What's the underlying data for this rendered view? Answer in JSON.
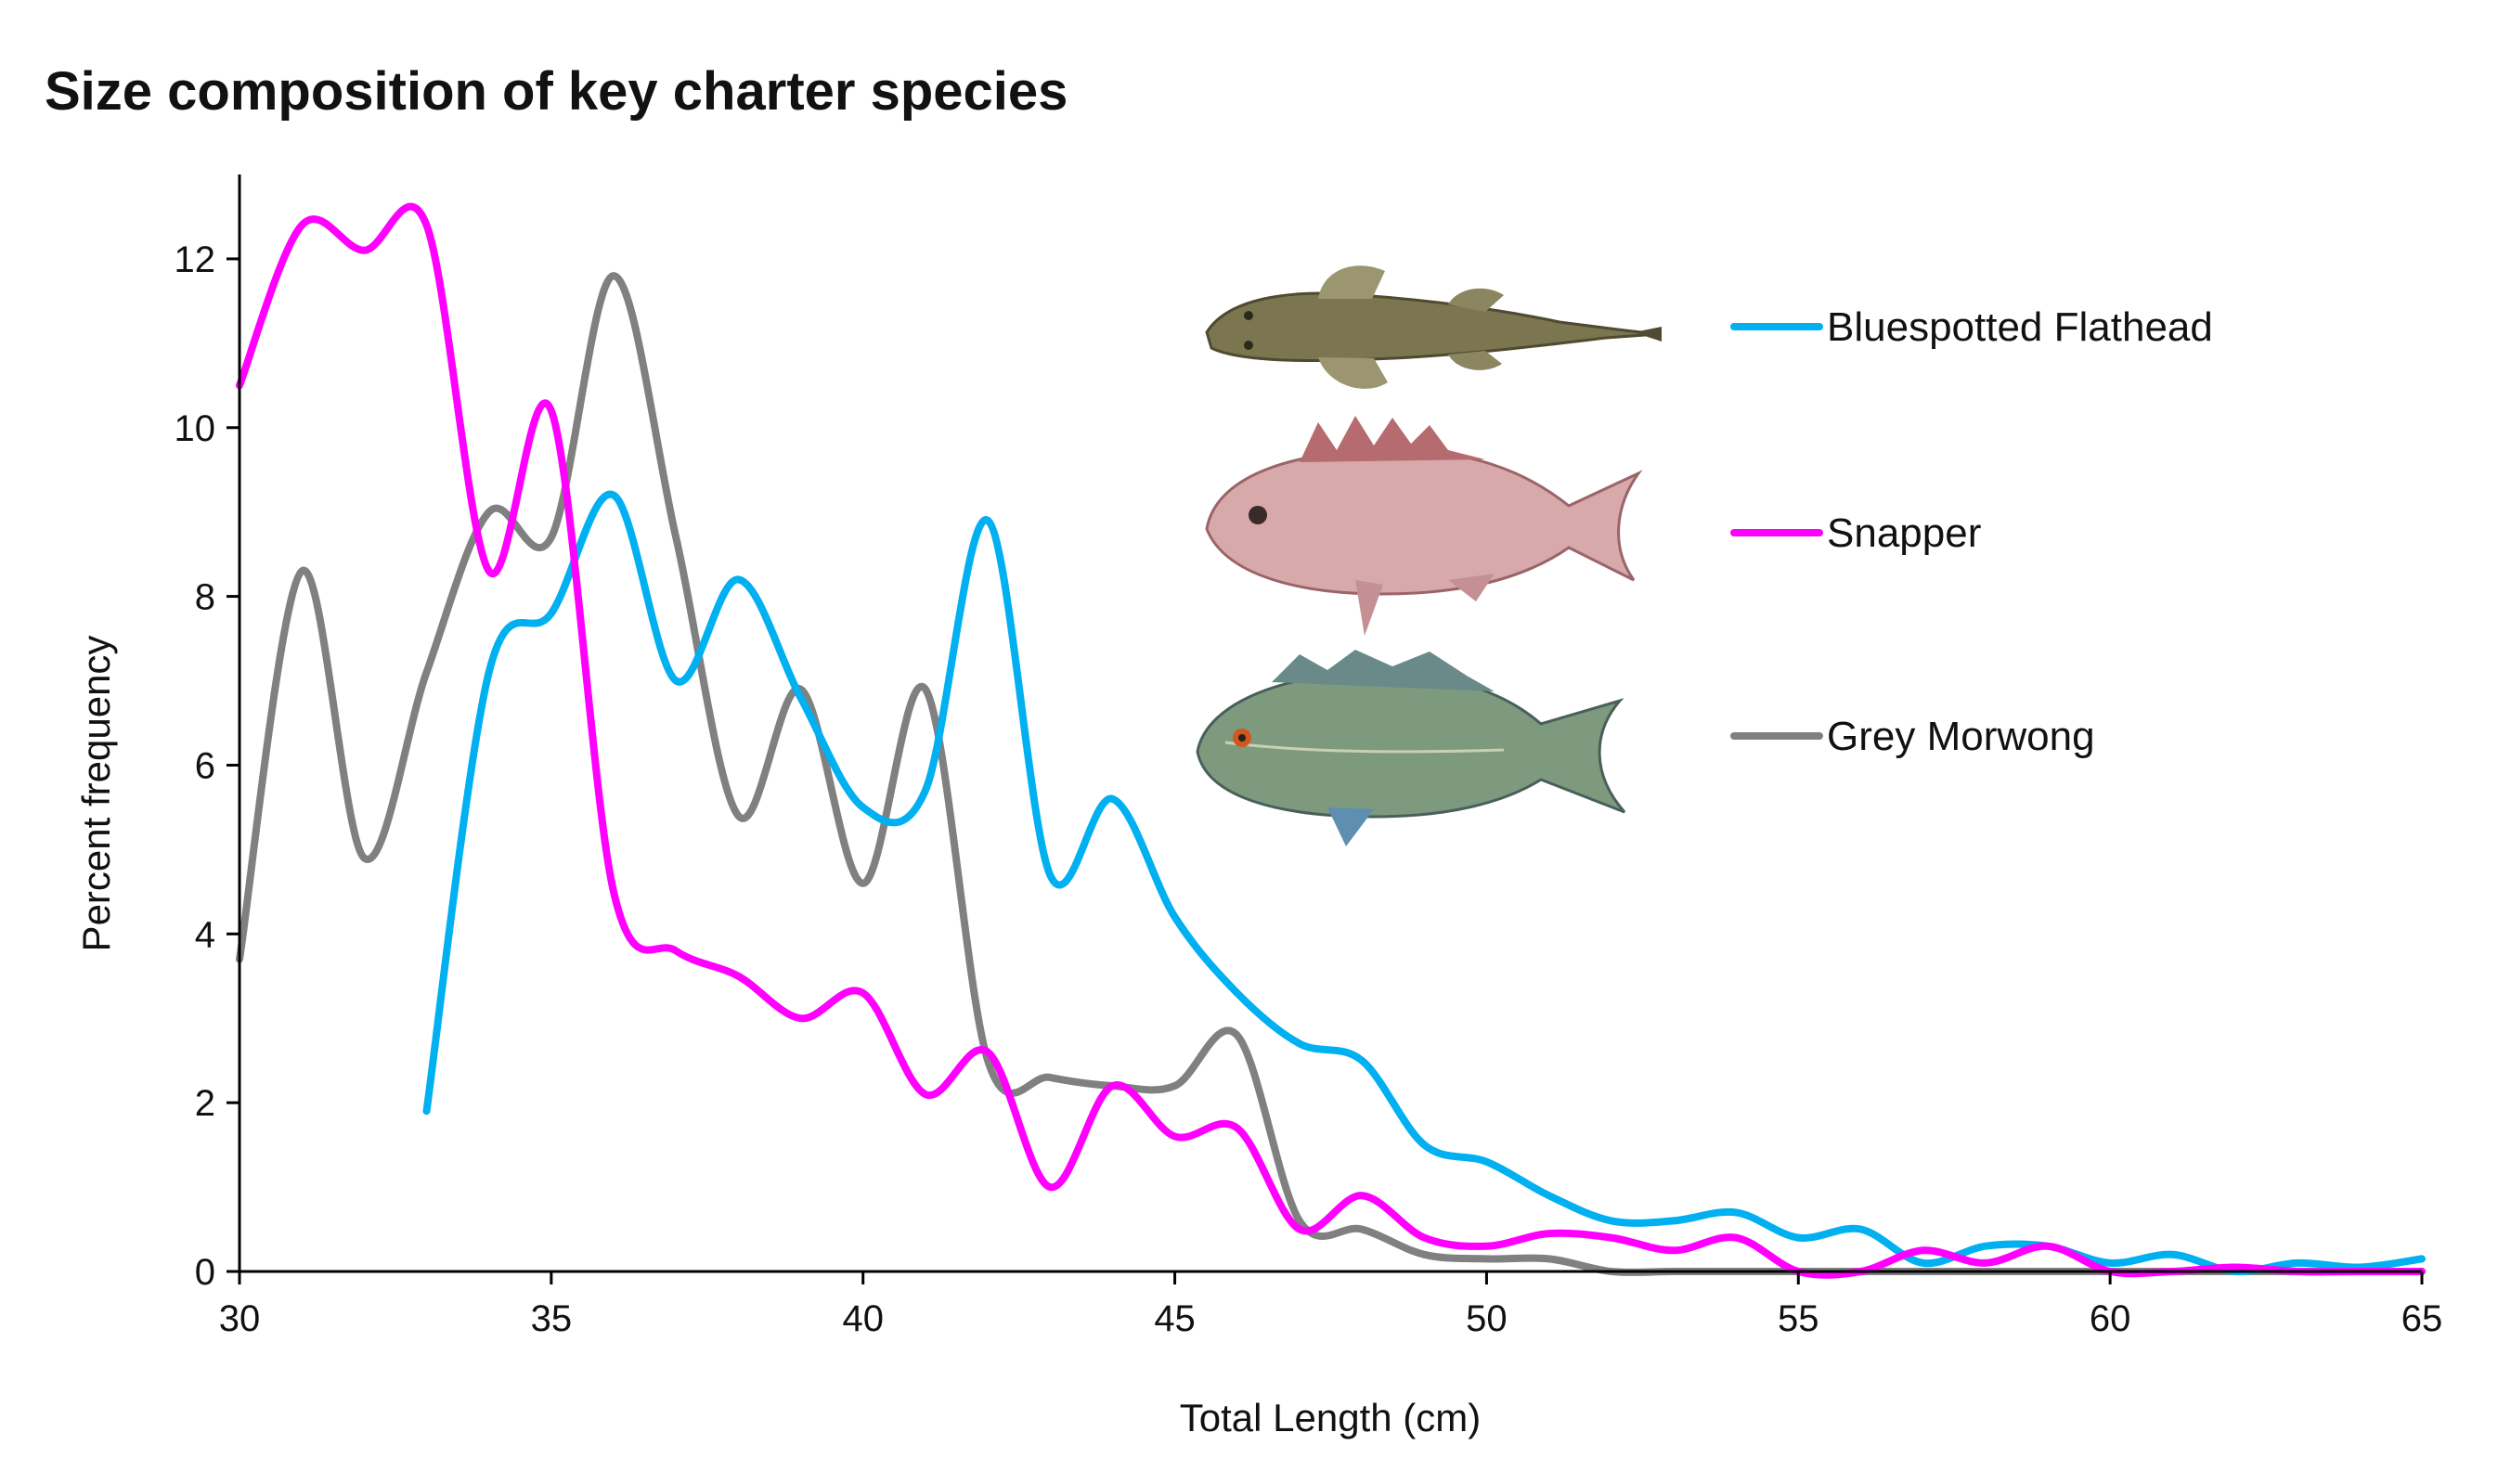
{
  "chart_data": {
    "type": "line",
    "title": "Size composition of key charter species",
    "xlabel": "Total Length (cm)",
    "ylabel": "Percent frequency",
    "xlim": [
      30,
      65
    ],
    "ylim": [
      0,
      13
    ],
    "xticks": [
      30,
      35,
      40,
      45,
      50,
      55,
      60,
      65
    ],
    "yticks": [
      0,
      2,
      4,
      6,
      8,
      10,
      12
    ],
    "grid": false,
    "legend_position": "top-right",
    "series": [
      {
        "name": "Bluespotted Flathead",
        "color": "#00b0f0",
        "icon": "flathead-fish-icon",
        "x": [
          33,
          34,
          35,
          36,
          37,
          38,
          39,
          40,
          41,
          42,
          43,
          44,
          45,
          46,
          47,
          48,
          49,
          50,
          51,
          52,
          53,
          54,
          55,
          56,
          57,
          58,
          59,
          60,
          61,
          62,
          63,
          64,
          65
        ],
        "y": [
          1.9,
          7.1,
          7.8,
          9.2,
          7.0,
          8.2,
          6.8,
          5.5,
          5.7,
          8.9,
          4.7,
          5.6,
          4.2,
          3.3,
          2.7,
          2.5,
          1.5,
          1.3,
          0.9,
          0.6,
          0.6,
          0.7,
          0.4,
          0.5,
          0.1,
          0.3,
          0.3,
          0.1,
          0.2,
          0.0,
          0.1,
          0.05,
          0.15
        ]
      },
      {
        "name": "Snapper",
        "color": "#ff00ff",
        "icon": "snapper-fish-icon",
        "x": [
          30,
          31,
          32,
          33,
          34,
          35,
          36,
          37,
          38,
          39,
          40,
          41,
          42,
          43,
          44,
          45,
          46,
          47,
          48,
          49,
          50,
          51,
          52,
          53,
          54,
          55,
          56,
          57,
          58,
          59,
          60,
          61,
          62,
          63,
          64,
          65
        ],
        "y": [
          10.5,
          12.4,
          12.1,
          12.4,
          8.3,
          10.2,
          4.5,
          3.8,
          3.5,
          3.0,
          3.3,
          2.1,
          2.6,
          1.0,
          2.2,
          1.6,
          1.7,
          0.5,
          0.9,
          0.4,
          0.3,
          0.45,
          0.4,
          0.25,
          0.4,
          0.0,
          0.0,
          0.25,
          0.1,
          0.3,
          0.0,
          0.0,
          0.05,
          0.0,
          0.0,
          0.0
        ]
      },
      {
        "name": "Grey Morwong",
        "color": "#808080",
        "icon": "grey-morwong-fish-icon",
        "x": [
          30,
          31,
          32,
          33,
          34,
          35,
          36,
          37,
          38,
          39,
          40,
          41,
          42,
          43,
          44,
          45,
          46,
          47,
          48,
          49,
          50,
          51,
          52,
          53,
          54,
          55,
          56,
          57,
          58,
          59,
          60,
          61,
          62,
          63,
          64,
          65
        ],
        "y": [
          3.7,
          8.3,
          4.9,
          7.1,
          9.0,
          8.7,
          11.8,
          8.7,
          5.4,
          6.9,
          4.6,
          6.9,
          2.5,
          2.3,
          2.2,
          2.2,
          2.8,
          0.6,
          0.5,
          0.2,
          0.15,
          0.15,
          0.0,
          0.0,
          0.0,
          0.0,
          0.0,
          0.0,
          0.0,
          0.0,
          0.0,
          0.0,
          0.0,
          0.0,
          0.0,
          0.0
        ]
      }
    ]
  }
}
